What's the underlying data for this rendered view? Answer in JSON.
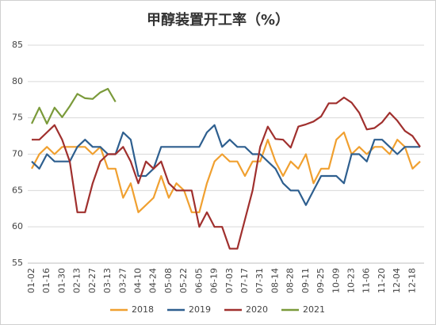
{
  "chart_data": {
    "type": "line",
    "title": "甲醇装置开工率（%）",
    "categories": [
      "01-02",
      null,
      "01-16",
      null,
      "01-30",
      null,
      "02-13",
      null,
      "02-27",
      null,
      "03-13",
      null,
      "03-27",
      null,
      "04-10",
      null,
      "04-24",
      null,
      "05-08",
      null,
      "05-22",
      null,
      "06-05",
      null,
      "06-19",
      null,
      "07-03",
      null,
      "07-17",
      null,
      "07-31",
      null,
      "08-14",
      null,
      "08-28",
      null,
      "09-11",
      null,
      "09-25",
      null,
      "10-09",
      null,
      "10-23",
      null,
      "11-06",
      null,
      "11-20",
      null,
      "12-04",
      null,
      "12-18",
      null
    ],
    "series": [
      {
        "name": "2018",
        "color": "#f0a030",
        "values": [
          68,
          70,
          71,
          70,
          71,
          71,
          71,
          71,
          70,
          71,
          68,
          68,
          64,
          66,
          62,
          63,
          64,
          67,
          64,
          66,
          65,
          62,
          62,
          66,
          69,
          70,
          69,
          69,
          67,
          69,
          69,
          72,
          69,
          67,
          69,
          68,
          70,
          66,
          68,
          68,
          72,
          73,
          70,
          71,
          70,
          71,
          71,
          70,
          72,
          71,
          68,
          69
        ]
      },
      {
        "name": "2019",
        "color": "#2e5f8f",
        "values": [
          69,
          68,
          70,
          69,
          69,
          69,
          71,
          72,
          71,
          71,
          70,
          70,
          73,
          72,
          67,
          67,
          68,
          71,
          71,
          71,
          71,
          71,
          71,
          73,
          74,
          71,
          72,
          71,
          71,
          70,
          70,
          69,
          68,
          66,
          65,
          65,
          63,
          65,
          67,
          67,
          67,
          66,
          70,
          70,
          69,
          72,
          72,
          71,
          70,
          71,
          71,
          71
        ]
      },
      {
        "name": "2020",
        "color": "#a0302e",
        "values": [
          72,
          72,
          73,
          74,
          72,
          69,
          62,
          62,
          66,
          69,
          70,
          70,
          71,
          69,
          66,
          69,
          68,
          69,
          66,
          65,
          65,
          65,
          60,
          62,
          60,
          60,
          57,
          57,
          61,
          65,
          71,
          73.8,
          72.1,
          72,
          70.9,
          73.8,
          74.1,
          74.5,
          75.2,
          77,
          77,
          77.8,
          77.1,
          75.7,
          73.4,
          73.6,
          74.4,
          75.7,
          74.6,
          73.2,
          72.5,
          71
        ]
      },
      {
        "name": "2021",
        "color": "#7a9a3a",
        "values": [
          74.2,
          76.4,
          74.2,
          76.4,
          75.1,
          76.6,
          78.3,
          77.7,
          77.6,
          78.5,
          79,
          77.2,
          null,
          null,
          null,
          null,
          null,
          null,
          null,
          null,
          null,
          null,
          null,
          null,
          null,
          null,
          null,
          null,
          null,
          null,
          null,
          null,
          null,
          null,
          null,
          null,
          null,
          null,
          null,
          null,
          null,
          null,
          null,
          null,
          null,
          null,
          null,
          null,
          null,
          null,
          null,
          null
        ]
      }
    ],
    "ylim": [
      55,
      85
    ],
    "yticks": [
      55,
      60,
      65,
      70,
      75,
      80,
      85
    ],
    "grid": true
  }
}
